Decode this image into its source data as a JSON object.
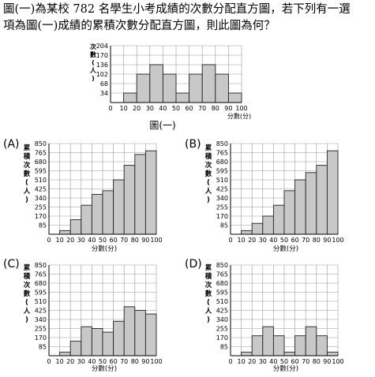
{
  "question": {
    "line1": "圖(一)為某校 782 名學生小考成績的次數分配直方圖，若下列有一選",
    "line2": "項為圖(一)成績的累積次數分配直方圖，則此圖為何？"
  },
  "colors": {
    "bar_fill": "#c8c8c8",
    "bar_stroke": "#222222",
    "grid": "#9a9a9a"
  },
  "chart_data": [
    {
      "id": "fig1",
      "type": "bar",
      "caption": "圖(一)",
      "ylabel_chars": [
        "次",
        "數",
        "(",
        "人",
        ")"
      ],
      "xlabel": "分數(分)",
      "x_ticks": [
        "0",
        "10",
        "20",
        "30",
        "40",
        "50",
        "60",
        "70",
        "80",
        "90",
        "100"
      ],
      "y_ticks": [
        34,
        68,
        102,
        136,
        170,
        204
      ],
      "ylim": [
        0,
        204
      ],
      "bins": [
        [
          10,
          20
        ],
        [
          20,
          30
        ],
        [
          30,
          40
        ],
        [
          40,
          50
        ],
        [
          50,
          60
        ],
        [
          60,
          70
        ],
        [
          70,
          80
        ],
        [
          80,
          90
        ],
        [
          90,
          100
        ]
      ],
      "values": [
        34,
        102,
        136,
        102,
        34,
        102,
        136,
        102,
        34
      ],
      "grid": true
    },
    {
      "id": "A",
      "type": "bar",
      "label": "(A)",
      "ylabel_chars": [
        "累",
        "積",
        "次",
        "數",
        "(",
        "人",
        ")"
      ],
      "xlabel": "分數(分)",
      "x_ticks": [
        "0",
        "10",
        "20",
        "30",
        "40",
        "50",
        "60",
        "70",
        "80",
        "90",
        "100"
      ],
      "y_ticks": [
        85,
        170,
        255,
        340,
        425,
        510,
        595,
        680,
        765,
        850
      ],
      "ylim": [
        0,
        850
      ],
      "bins": [
        [
          10,
          20
        ],
        [
          20,
          30
        ],
        [
          30,
          40
        ],
        [
          40,
          50
        ],
        [
          50,
          60
        ],
        [
          60,
          70
        ],
        [
          70,
          80
        ],
        [
          80,
          90
        ],
        [
          90,
          100
        ]
      ],
      "values": [
        34,
        136,
        272,
        374,
        408,
        510,
        646,
        748,
        782
      ],
      "grid": true
    },
    {
      "id": "B",
      "type": "bar",
      "label": "(B)",
      "ylabel_chars": [
        "累",
        "積",
        "次",
        "數",
        "(",
        "人",
        ")"
      ],
      "xlabel": "分數(分)",
      "x_ticks": [
        "0",
        "10",
        "20",
        "30",
        "40",
        "50",
        "60",
        "70",
        "80",
        "90",
        "100"
      ],
      "y_ticks": [
        85,
        170,
        255,
        340,
        425,
        510,
        595,
        680,
        765,
        850
      ],
      "ylim": [
        0,
        850
      ],
      "bins": [
        [
          10,
          20
        ],
        [
          20,
          30
        ],
        [
          30,
          40
        ],
        [
          40,
          50
        ],
        [
          50,
          60
        ],
        [
          60,
          70
        ],
        [
          70,
          80
        ],
        [
          80,
          90
        ],
        [
          90,
          100
        ]
      ],
      "values": [
        34,
        102,
        170,
        272,
        408,
        510,
        578,
        646,
        782
      ],
      "grid": true
    },
    {
      "id": "C",
      "type": "bar",
      "label": "(C)",
      "ylabel_chars": [
        "累",
        "積",
        "次",
        "數",
        "(",
        "人",
        ")"
      ],
      "xlabel": "分數(分)",
      "x_ticks": [
        "0",
        "10",
        "20",
        "30",
        "40",
        "50",
        "60",
        "70",
        "80",
        "90",
        "100"
      ],
      "y_ticks": [
        85,
        170,
        255,
        340,
        425,
        510,
        595,
        680,
        765,
        850
      ],
      "ylim": [
        0,
        850
      ],
      "bins": [
        [
          10,
          20
        ],
        [
          20,
          30
        ],
        [
          30,
          40
        ],
        [
          40,
          50
        ],
        [
          50,
          60
        ],
        [
          60,
          70
        ],
        [
          70,
          80
        ],
        [
          80,
          90
        ],
        [
          90,
          100
        ]
      ],
      "values": [
        34,
        136,
        272,
        255,
        221,
        323,
        459,
        425,
        391
      ],
      "grid": true
    },
    {
      "id": "D",
      "type": "bar",
      "label": "(D)",
      "ylabel_chars": [
        "累",
        "積",
        "次",
        "數",
        "(",
        "人",
        ")"
      ],
      "xlabel": "分數(分)",
      "x_ticks": [
        "0",
        "10",
        "20",
        "30",
        "40",
        "50",
        "60",
        "70",
        "80",
        "90",
        "100"
      ],
      "y_ticks": [
        85,
        170,
        255,
        340,
        425,
        510,
        595,
        680,
        765,
        850
      ],
      "ylim": [
        0,
        850
      ],
      "bins": [
        [
          10,
          20
        ],
        [
          20,
          30
        ],
        [
          30,
          40
        ],
        [
          40,
          50
        ],
        [
          50,
          60
        ],
        [
          60,
          70
        ],
        [
          70,
          80
        ],
        [
          80,
          90
        ],
        [
          90,
          100
        ]
      ],
      "values": [
        34,
        187,
        272,
        187,
        34,
        187,
        272,
        187,
        34
      ],
      "grid": true
    }
  ]
}
